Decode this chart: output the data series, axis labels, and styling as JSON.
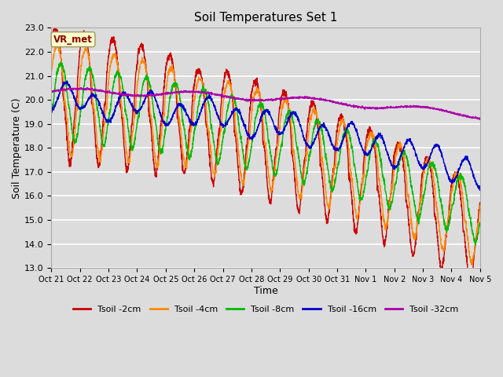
{
  "title": "Soil Temperatures Set 1",
  "xlabel": "Time",
  "ylabel": "Soil Temperature (C)",
  "ylim": [
    13.0,
    23.0
  ],
  "yticks": [
    13.0,
    14.0,
    15.0,
    16.0,
    17.0,
    18.0,
    19.0,
    20.0,
    21.0,
    22.0,
    23.0
  ],
  "background_color": "#dcdcdc",
  "plot_bg_color": "#dcdcdc",
  "line_colors": {
    "Tsoil -2cm": "#cc0000",
    "Tsoil -4cm": "#ff8800",
    "Tsoil -8cm": "#00bb00",
    "Tsoil -16cm": "#0000cc",
    "Tsoil -32cm": "#aa00aa"
  },
  "xtick_labels": [
    "Oct 21",
    "Oct 22",
    "Oct 23",
    "Oct 24",
    "Oct 25",
    "Oct 26",
    "Oct 27",
    "Oct 28",
    "Oct 29",
    "Oct 30",
    "Oct 31",
    "Nov 1",
    "Nov 2",
    "Nov 3",
    "Nov 4",
    "Nov 5"
  ],
  "annotation_text": "VR_met",
  "annotation_color": "#8b0000",
  "annotation_bg": "#ffffcc",
  "n_points": 2400
}
